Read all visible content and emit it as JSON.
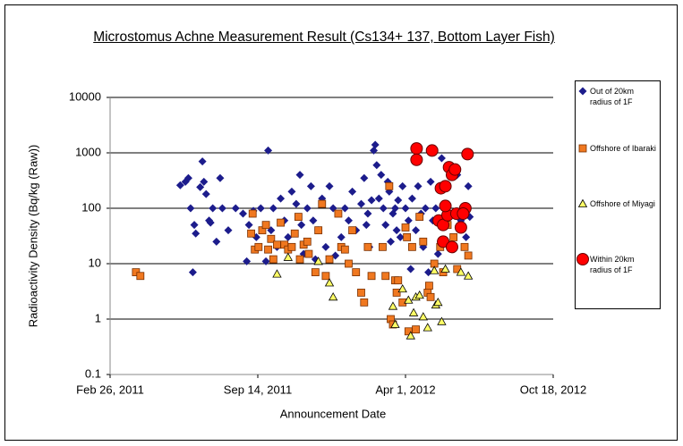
{
  "chart_data": {
    "type": "scatter",
    "title": "Microstomus Achne Measurement Result (Cs134+ 137, Bottom Layer Fish)",
    "xlabel": "Announcement Date",
    "ylabel": "Radioactivity Density (Bq/kg (Raw))",
    "log_y": true,
    "grid": true,
    "legend": "right",
    "ylim": [
      0.1,
      10000
    ],
    "yticks": [
      0.1,
      1,
      10,
      100,
      1000,
      10000
    ],
    "xlim": [
      "2011-02-26",
      "2012-10-18"
    ],
    "xticks": [
      {
        "value": "2011-02-26",
        "label": "Feb 26, 2011"
      },
      {
        "value": "2011-09-14",
        "label": "Sep 14, 2011"
      },
      {
        "value": "2012-04-01",
        "label": "Apr 1, 2012"
      },
      {
        "value": "2012-10-18",
        "label": "Oct 18, 2012"
      }
    ],
    "series": [
      {
        "name": "Out of 20km radius of 1F",
        "color": "#1c1c8c",
        "marker": "diamond",
        "x": [
          "2011-06-01",
          "2011-06-08",
          "2011-06-12",
          "2011-06-15",
          "2011-06-20",
          "2011-06-22",
          "2011-06-18",
          "2011-06-28",
          "2011-07-01",
          "2011-07-03",
          "2011-07-06",
          "2011-07-10",
          "2011-07-12",
          "2011-07-15",
          "2011-07-20",
          "2011-07-25",
          "2011-07-28",
          "2011-08-05",
          "2011-08-15",
          "2011-08-25",
          "2011-08-30",
          "2011-09-02",
          "2011-09-08",
          "2011-09-12",
          "2011-09-18",
          "2011-09-25",
          "2011-09-28",
          "2011-10-02",
          "2011-10-05",
          "2011-10-10",
          "2011-10-15",
          "2011-10-20",
          "2011-10-25",
          "2011-10-30",
          "2011-11-05",
          "2011-11-10",
          "2011-11-12",
          "2011-11-15",
          "2011-11-20",
          "2011-11-25",
          "2011-11-28",
          "2011-12-01",
          "2011-12-05",
          "2011-12-10",
          "2011-12-15",
          "2011-12-20",
          "2011-12-25",
          "2011-12-28",
          "2012-01-05",
          "2012-01-10",
          "2012-01-15",
          "2012-01-20",
          "2012-01-25",
          "2012-02-01",
          "2012-02-05",
          "2012-02-08",
          "2012-02-10",
          "2012-02-12",
          "2012-02-15",
          "2012-02-18",
          "2012-02-20",
          "2012-02-22",
          "2012-02-25",
          "2012-02-28",
          "2012-03-02",
          "2012-03-05",
          "2012-03-08",
          "2012-03-10",
          "2012-03-12",
          "2012-03-15",
          "2012-03-18",
          "2012-03-20",
          "2012-03-22",
          "2012-03-25",
          "2012-03-28",
          "2012-04-01",
          "2012-04-05",
          "2012-04-08",
          "2012-04-10",
          "2012-04-15",
          "2012-04-18",
          "2012-04-22",
          "2012-04-25",
          "2012-04-28",
          "2012-05-02",
          "2012-05-05",
          "2012-05-08",
          "2012-05-12",
          "2012-05-15",
          "2012-05-20",
          "2012-05-25",
          "2012-05-28",
          "2012-06-01",
          "2012-06-05",
          "2012-06-10",
          "2012-06-15",
          "2012-06-18",
          "2012-06-22",
          "2012-06-25",
          "2012-06-27"
        ],
        "values": [
          260,
          300,
          350,
          100,
          50,
          35,
          7,
          240,
          700,
          300,
          180,
          60,
          55,
          100,
          25,
          350,
          100,
          40,
          100,
          80,
          11,
          50,
          90,
          30,
          100,
          11,
          1100,
          40,
          100,
          20,
          150,
          60,
          30,
          200,
          120,
          400,
          50,
          15,
          100,
          250,
          60,
          12,
          40,
          150,
          20,
          250,
          100,
          14,
          30,
          100,
          60,
          200,
          40,
          120,
          350,
          50,
          80,
          20,
          140,
          1100,
          1400,
          600,
          150,
          400,
          100,
          50,
          300,
          200,
          25,
          80,
          100,
          40,
          140,
          30,
          250,
          100,
          60,
          8,
          150,
          40,
          250,
          80,
          20,
          100,
          7,
          300,
          60,
          100,
          15,
          800,
          50,
          250,
          80,
          20,
          400,
          60,
          100,
          30,
          250,
          70
        ]
      },
      {
        "name": "Offshore of Ibaraki",
        "color": "#f07820",
        "marker": "square",
        "x": [
          "2011-04-02",
          "2011-04-08",
          "2011-09-05",
          "2011-09-07",
          "2011-09-10",
          "2011-09-15",
          "2011-09-20",
          "2011-09-25",
          "2011-09-28",
          "2011-10-02",
          "2011-10-05",
          "2011-10-10",
          "2011-10-15",
          "2011-10-20",
          "2011-10-25",
          "2011-10-30",
          "2011-11-03",
          "2011-11-08",
          "2011-11-10",
          "2011-11-15",
          "2011-11-20",
          "2011-11-22",
          "2011-12-01",
          "2011-12-05",
          "2011-12-10",
          "2011-12-15",
          "2011-12-20",
          "2012-01-01",
          "2012-01-05",
          "2012-01-10",
          "2012-01-15",
          "2012-01-20",
          "2012-01-25",
          "2012-02-01",
          "2012-02-05",
          "2012-02-10",
          "2012-02-15",
          "2012-03-01",
          "2012-03-05",
          "2012-03-10",
          "2012-03-12",
          "2012-03-15",
          "2012-03-18",
          "2012-03-20",
          "2012-03-22",
          "2012-03-28",
          "2012-04-01",
          "2012-04-03",
          "2012-04-05",
          "2012-04-10",
          "2012-04-15",
          "2012-04-20",
          "2012-04-25",
          "2012-05-01",
          "2012-05-03",
          "2012-05-05",
          "2012-05-10",
          "2012-05-18",
          "2012-05-22",
          "2012-05-28",
          "2012-06-05",
          "2012-06-10",
          "2012-06-20",
          "2012-06-25"
        ],
        "values": [
          7,
          6,
          35,
          80,
          18,
          20,
          40,
          50,
          18,
          28,
          12,
          22,
          55,
          22,
          18,
          20,
          35,
          70,
          12,
          22,
          25,
          15,
          7,
          40,
          120,
          6,
          12,
          80,
          20,
          18,
          10,
          40,
          7,
          3,
          2,
          20,
          6,
          20,
          6,
          250,
          1,
          0.8,
          5,
          3,
          5,
          2,
          45,
          30,
          0.6,
          20,
          0.65,
          70,
          25,
          3,
          4,
          2.5,
          10,
          20,
          7,
          50,
          30,
          8,
          20,
          14
        ]
      },
      {
        "name": "Offshore of Miyagi",
        "color": "#ffff66",
        "marker": "triangle",
        "x": [
          "2011-10-10",
          "2011-10-25",
          "2011-12-05",
          "2011-12-20",
          "2011-12-25",
          "2012-03-15",
          "2012-03-18",
          "2012-03-28",
          "2012-04-05",
          "2012-04-08",
          "2012-04-12",
          "2012-04-15",
          "2012-04-20",
          "2012-04-25",
          "2012-05-01",
          "2012-05-10",
          "2012-05-12",
          "2012-05-15",
          "2012-05-20",
          "2012-05-25",
          "2012-06-15",
          "2012-06-25"
        ],
        "values": [
          6.5,
          13,
          11,
          4.5,
          2.5,
          1.7,
          0.8,
          3.5,
          2.2,
          0.5,
          1.3,
          2.5,
          2.7,
          1.1,
          0.7,
          7.5,
          1.8,
          2,
          0.9,
          8,
          7,
          6
        ]
      },
      {
        "name": "Within 20km radius of 1F",
        "color": "#ff0000",
        "marker": "circle",
        "x": [
          "2012-04-16",
          "2012-04-16",
          "2012-05-07",
          "2012-05-19",
          "2012-05-25",
          "2012-05-30",
          "2012-06-03",
          "2012-06-07",
          "2012-05-16",
          "2012-05-22",
          "2012-05-28",
          "2012-05-22",
          "2012-06-03",
          "2012-06-09",
          "2012-06-15",
          "2012-06-21",
          "2012-06-24",
          "2012-05-25",
          "2012-06-18"
        ],
        "values": [
          1200,
          750,
          1100,
          230,
          250,
          550,
          400,
          500,
          60,
          50,
          75,
          25,
          20,
          80,
          45,
          100,
          950,
          110,
          80
        ]
      }
    ]
  }
}
